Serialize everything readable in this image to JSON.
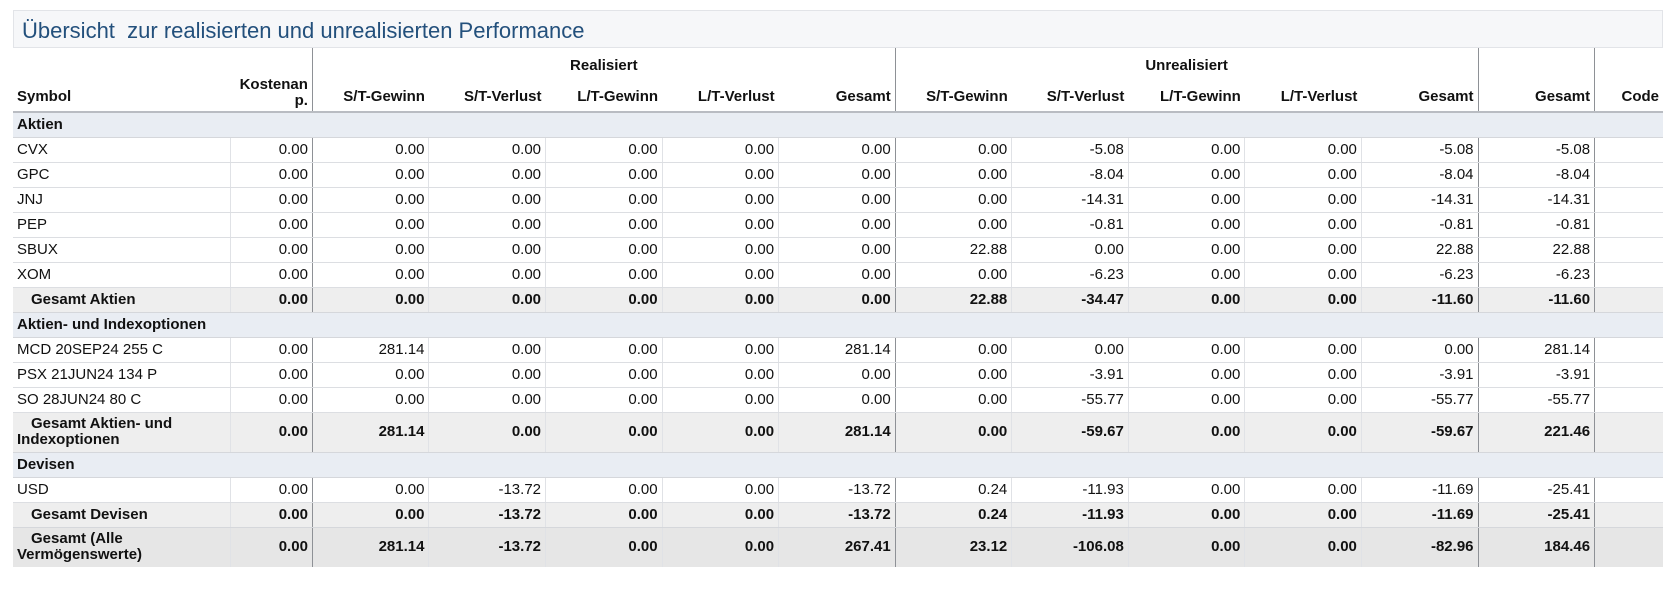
{
  "title": "Übersicht  zur realisierten und unrealisierten Performance",
  "group_headers": {
    "realized": "Realisiert",
    "unrealized": "Unrealisiert"
  },
  "columns": [
    "Symbol",
    "Kostenan p.",
    "S/T-Gewinn",
    "S/T-Verlust",
    "L/T-Gewinn",
    "L/T-Verlust",
    "Gesamt",
    "S/T-Gewinn",
    "S/T-Verlust",
    "L/T-Gewinn",
    "L/T-Verlust",
    "Gesamt",
    "Gesamt",
    "Code"
  ],
  "sections": [
    {
      "name": "Aktien",
      "rows": [
        {
          "symbol": "CVX",
          "values": [
            "0.00",
            "0.00",
            "0.00",
            "0.00",
            "0.00",
            "0.00",
            "0.00",
            "-5.08",
            "0.00",
            "0.00",
            "-5.08",
            "-5.08",
            ""
          ]
        },
        {
          "symbol": "GPC",
          "values": [
            "0.00",
            "0.00",
            "0.00",
            "0.00",
            "0.00",
            "0.00",
            "0.00",
            "-8.04",
            "0.00",
            "0.00",
            "-8.04",
            "-8.04",
            ""
          ]
        },
        {
          "symbol": "JNJ",
          "values": [
            "0.00",
            "0.00",
            "0.00",
            "0.00",
            "0.00",
            "0.00",
            "0.00",
            "-14.31",
            "0.00",
            "0.00",
            "-14.31",
            "-14.31",
            ""
          ]
        },
        {
          "symbol": "PEP",
          "values": [
            "0.00",
            "0.00",
            "0.00",
            "0.00",
            "0.00",
            "0.00",
            "0.00",
            "-0.81",
            "0.00",
            "0.00",
            "-0.81",
            "-0.81",
            ""
          ]
        },
        {
          "symbol": "SBUX",
          "values": [
            "0.00",
            "0.00",
            "0.00",
            "0.00",
            "0.00",
            "0.00",
            "22.88",
            "0.00",
            "0.00",
            "0.00",
            "22.88",
            "22.88",
            ""
          ]
        },
        {
          "symbol": "XOM",
          "values": [
            "0.00",
            "0.00",
            "0.00",
            "0.00",
            "0.00",
            "0.00",
            "0.00",
            "-6.23",
            "0.00",
            "0.00",
            "-6.23",
            "-6.23",
            ""
          ]
        }
      ],
      "subtotal": {
        "label": "Gesamt Aktien",
        "values": [
          "0.00",
          "0.00",
          "0.00",
          "0.00",
          "0.00",
          "0.00",
          "22.88",
          "-34.47",
          "0.00",
          "0.00",
          "-11.60",
          "-11.60",
          ""
        ]
      }
    },
    {
      "name": "Aktien- und Indexoptionen",
      "rows": [
        {
          "symbol": "MCD 20SEP24 255 C",
          "values": [
            "0.00",
            "281.14",
            "0.00",
            "0.00",
            "0.00",
            "281.14",
            "0.00",
            "0.00",
            "0.00",
            "0.00",
            "0.00",
            "281.14",
            ""
          ]
        },
        {
          "symbol": "PSX 21JUN24 134 P",
          "values": [
            "0.00",
            "0.00",
            "0.00",
            "0.00",
            "0.00",
            "0.00",
            "0.00",
            "-3.91",
            "0.00",
            "0.00",
            "-3.91",
            "-3.91",
            ""
          ]
        },
        {
          "symbol": "SO 28JUN24 80 C",
          "values": [
            "0.00",
            "0.00",
            "0.00",
            "0.00",
            "0.00",
            "0.00",
            "0.00",
            "-55.77",
            "0.00",
            "0.00",
            "-55.77",
            "-55.77",
            ""
          ]
        }
      ],
      "subtotal": {
        "label": "Gesamt Aktien- und Indexoptionen",
        "values": [
          "0.00",
          "281.14",
          "0.00",
          "0.00",
          "0.00",
          "281.14",
          "0.00",
          "-59.67",
          "0.00",
          "0.00",
          "-59.67",
          "221.46",
          ""
        ]
      }
    },
    {
      "name": "Devisen",
      "rows": [
        {
          "symbol": "USD",
          "values": [
            "0.00",
            "0.00",
            "-13.72",
            "0.00",
            "0.00",
            "-13.72",
            "0.24",
            "-11.93",
            "0.00",
            "0.00",
            "-11.69",
            "-25.41",
            ""
          ]
        }
      ],
      "subtotal": {
        "label": "Gesamt Devisen",
        "values": [
          "0.00",
          "0.00",
          "-13.72",
          "0.00",
          "0.00",
          "-13.72",
          "0.24",
          "-11.93",
          "0.00",
          "0.00",
          "-11.69",
          "-25.41",
          ""
        ]
      }
    }
  ],
  "grand_total": {
    "label": "Gesamt (Alle Vermögenswerte)",
    "values": [
      "0.00",
      "281.14",
      "-13.72",
      "0.00",
      "0.00",
      "267.41",
      "23.12",
      "-106.08",
      "0.00",
      "0.00",
      "-82.96",
      "184.46",
      ""
    ]
  }
}
